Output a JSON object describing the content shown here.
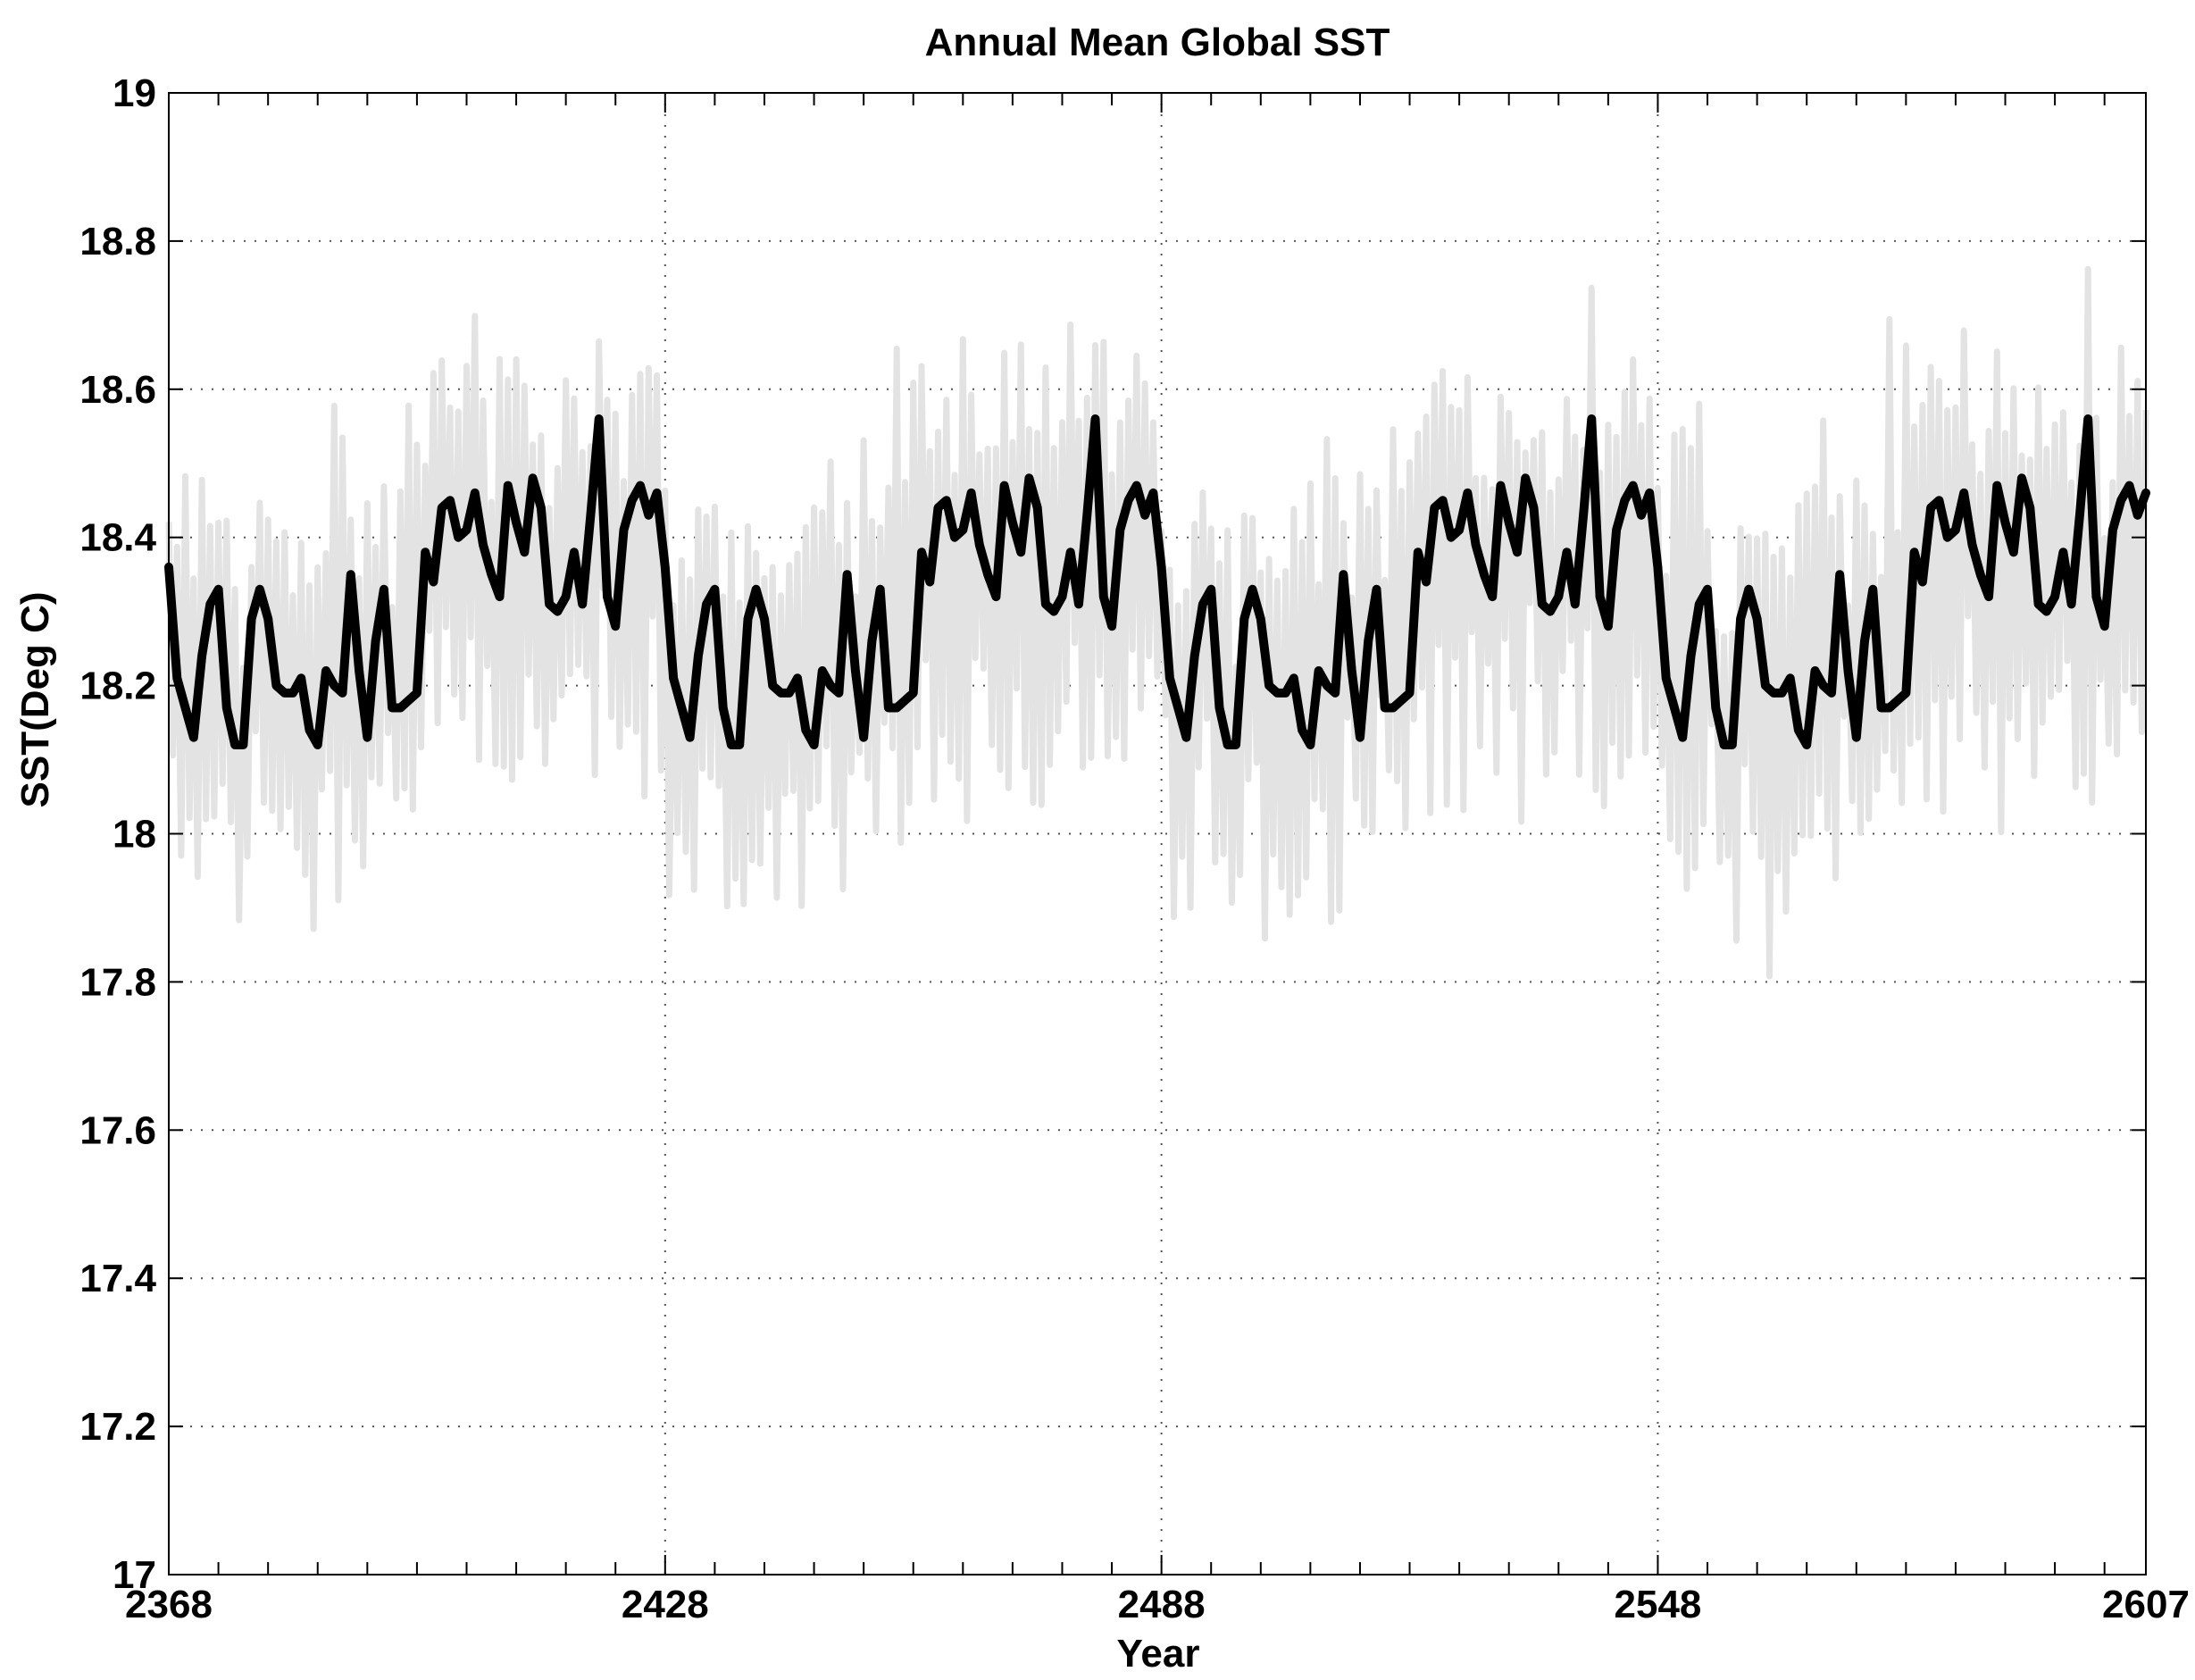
{
  "colors": {
    "background": "#ffffff",
    "annual_line": "#e3e3e3",
    "smoothed_line": "#000000",
    "grid": "#555555",
    "axes": "#000000"
  },
  "chart_data": {
    "type": "line",
    "title": "Annual Mean Global SST",
    "xlabel": "Year",
    "ylabel": "SST(Deg C)",
    "xlim": [
      2368,
      2607
    ],
    "ylim": [
      17,
      19
    ],
    "xticks": [
      2368,
      2428,
      2488,
      2548,
      2607
    ],
    "yticks": [
      17,
      17.2,
      17.4,
      17.6,
      17.8,
      18,
      18.2,
      18.4,
      18.6,
      18.8,
      19
    ],
    "ytick_labels": [
      "17",
      "17.2",
      "17.4",
      "17.6",
      "17.8",
      "18",
      "18.2",
      "18.4",
      "18.6",
      "18.8",
      "19"
    ],
    "xtick_labels": [
      "2368",
      "2428",
      "2488",
      "2548",
      "2607"
    ],
    "grid": true,
    "grid_style": "dotted",
    "repeat_period_years": 60,
    "smoothed_one_cycle": [
      [
        2368,
        18.36
      ],
      [
        2369,
        18.21
      ],
      [
        2370,
        18.17
      ],
      [
        2371,
        18.13
      ],
      [
        2372,
        18.24
      ],
      [
        2373,
        18.31
      ],
      [
        2374,
        18.33
      ],
      [
        2375,
        18.17
      ],
      [
        2376,
        18.12
      ],
      [
        2377,
        18.12
      ],
      [
        2378,
        18.29
      ],
      [
        2379,
        18.33
      ],
      [
        2380,
        18.29
      ],
      [
        2381,
        18.2
      ],
      [
        2382,
        18.19
      ],
      [
        2383,
        18.19
      ],
      [
        2384,
        18.21
      ],
      [
        2385,
        18.14
      ],
      [
        2386,
        18.12
      ],
      [
        2387,
        18.22
      ],
      [
        2388,
        18.2
      ],
      [
        2389,
        18.19
      ],
      [
        2390,
        18.35
      ],
      [
        2391,
        18.22
      ],
      [
        2392,
        18.13
      ],
      [
        2393,
        18.26
      ],
      [
        2394,
        18.33
      ],
      [
        2395,
        18.17
      ],
      [
        2396,
        18.17
      ],
      [
        2397,
        18.18
      ],
      [
        2398,
        18.19
      ],
      [
        2399,
        18.38
      ],
      [
        2400,
        18.34
      ],
      [
        2401,
        18.44
      ],
      [
        2402,
        18.45
      ],
      [
        2403,
        18.4
      ],
      [
        2404,
        18.41
      ],
      [
        2405,
        18.46
      ],
      [
        2406,
        18.39
      ],
      [
        2407,
        18.35
      ],
      [
        2408,
        18.32
      ],
      [
        2409,
        18.47
      ],
      [
        2410,
        18.42
      ],
      [
        2411,
        18.38
      ],
      [
        2412,
        18.48
      ],
      [
        2413,
        18.44
      ],
      [
        2414,
        18.31
      ],
      [
        2415,
        18.3
      ],
      [
        2416,
        18.32
      ],
      [
        2417,
        18.38
      ],
      [
        2418,
        18.31
      ],
      [
        2419,
        18.43
      ],
      [
        2420,
        18.56
      ],
      [
        2421,
        18.32
      ],
      [
        2422,
        18.28
      ],
      [
        2423,
        18.41
      ],
      [
        2424,
        18.45
      ],
      [
        2425,
        18.47
      ],
      [
        2426,
        18.43
      ],
      [
        2427,
        18.46
      ]
    ],
    "series": [
      {
        "style": "thin light gray annual values",
        "x_range": [
          2368,
          2607
        ],
        "y_range_approx": [
          17.77,
          18.78
        ],
        "envelope_low_one_cycle": [
          17.87,
          17.85,
          17.92,
          17.9,
          17.84,
          17.95,
          17.77,
          17.86,
          17.85,
          17.96,
          17.88,
          17.94,
          17.98,
          18.04,
          17.98,
          18.1,
          17.99,
          18.02,
          18.0,
          18.04,
          17.97,
          18.0,
          18.02,
          18.05,
          18.09,
          18.05,
          18.0,
          17.99,
          18.04,
          18.06
        ],
        "envelope_high_one_cycle": [
          18.49,
          18.55,
          18.6,
          18.45,
          18.41,
          18.45,
          18.43,
          18.42,
          18.45,
          18.53,
          18.64,
          18.46,
          18.57,
          18.51,
          18.71,
          18.68,
          18.65,
          18.63,
          18.75,
          18.62,
          18.66,
          18.68,
          18.55,
          18.64,
          18.7,
          18.59,
          18.78,
          18.58,
          18.67,
          18.64
        ]
      },
      {
        "style": "thick black smoothed curve",
        "x_range": [
          2368,
          2607
        ],
        "y_range_approx": [
          18.12,
          18.56
        ]
      }
    ]
  }
}
